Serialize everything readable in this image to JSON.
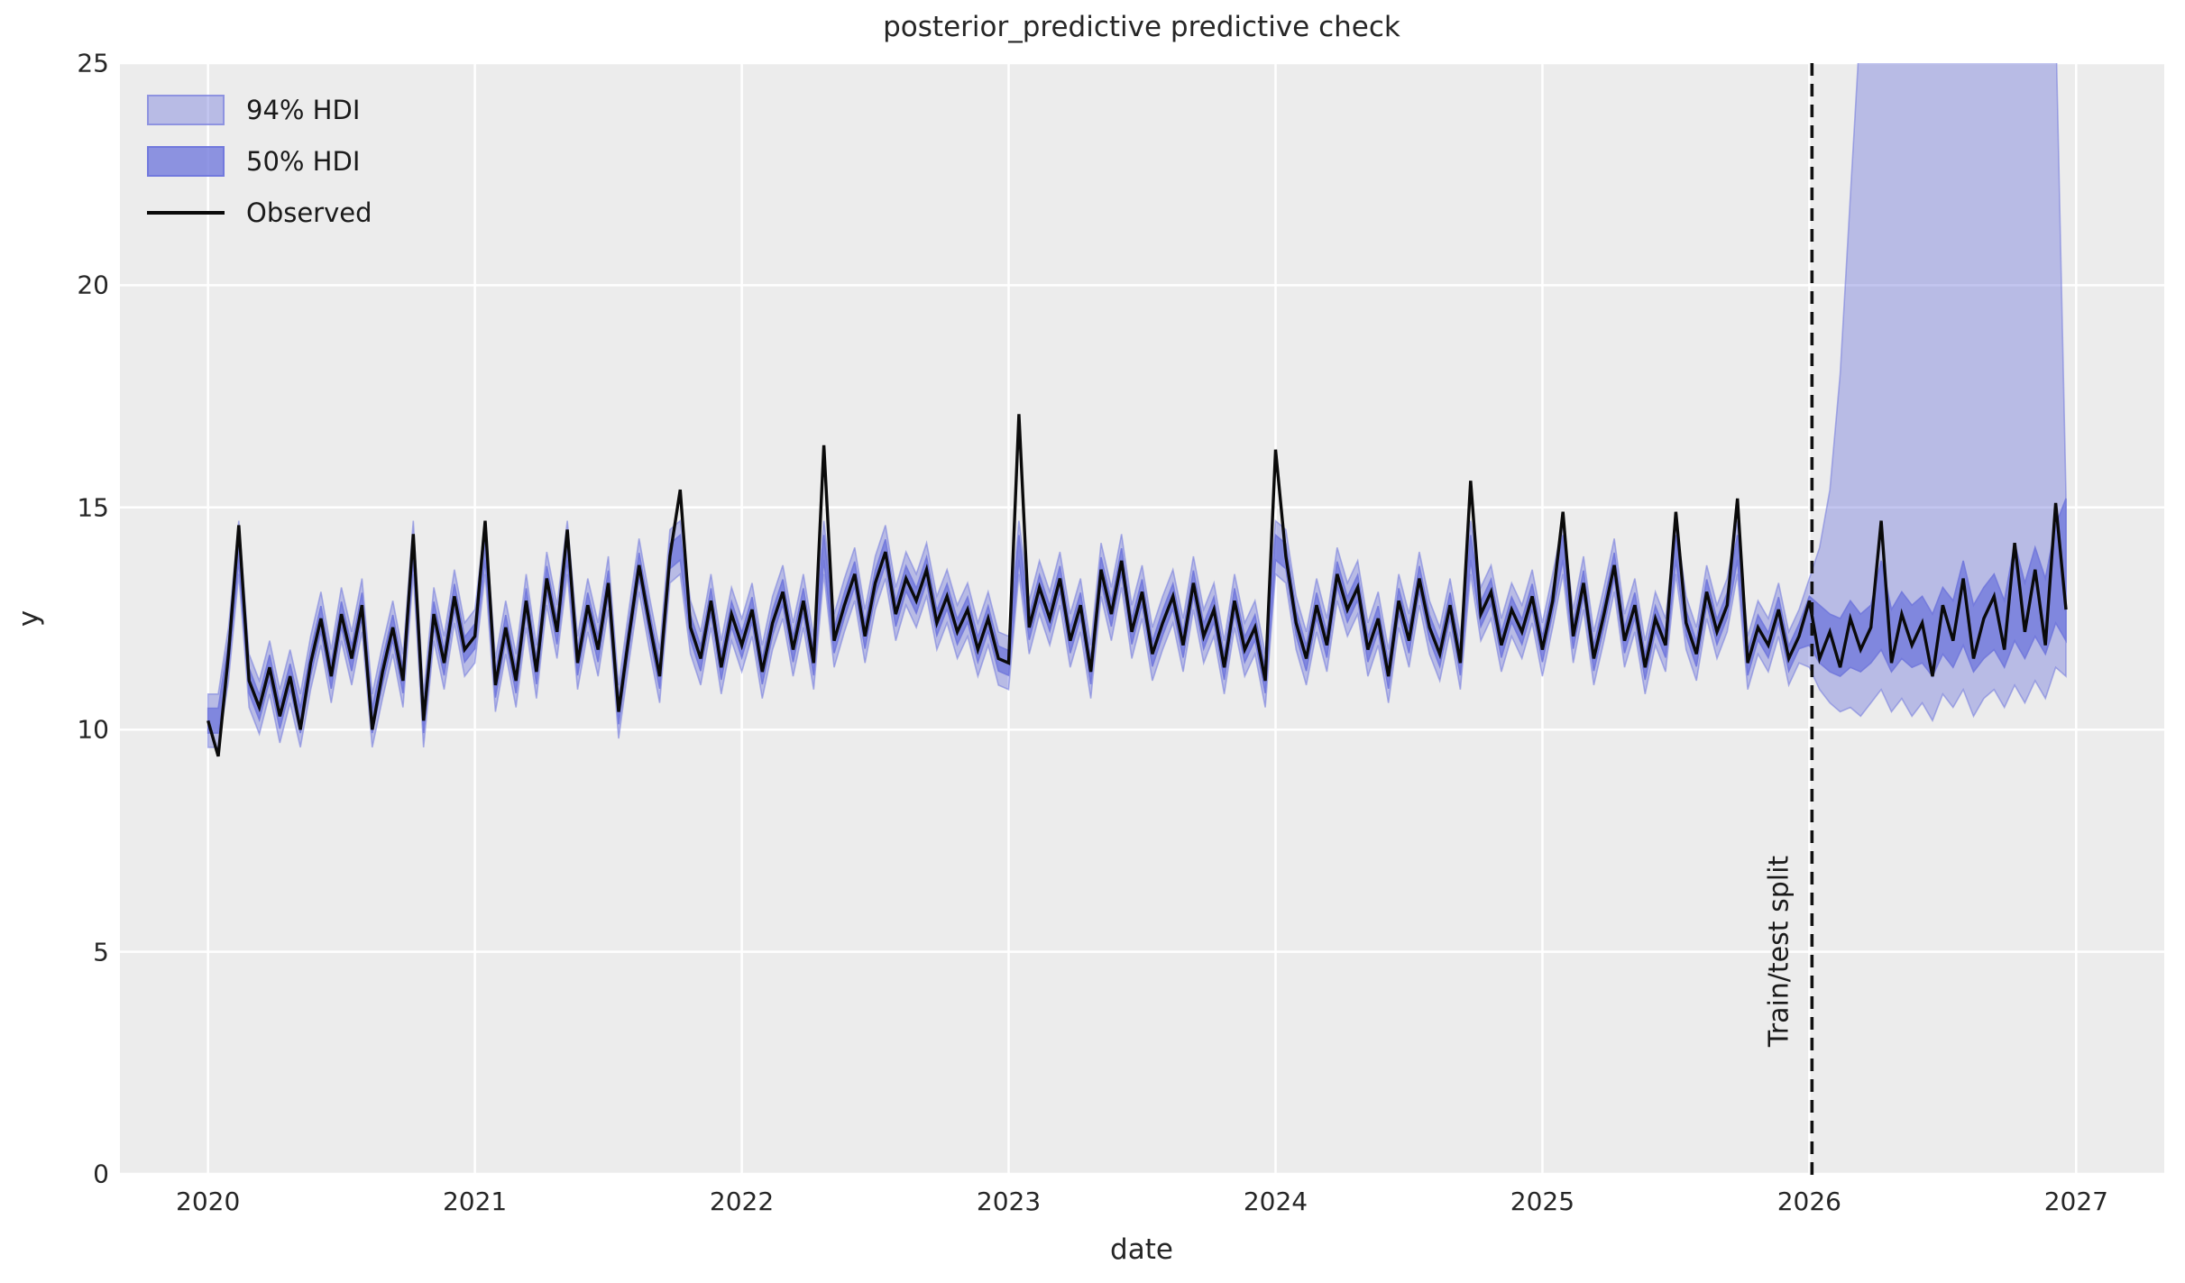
{
  "title": "posterior_predictive predictive check",
  "axes": {
    "xlabel": "date",
    "ylabel": "y",
    "x_tick_labels": [
      "2020",
      "2021",
      "2022",
      "2023",
      "2024",
      "2025",
      "2026",
      "2027"
    ],
    "y_tick_labels": [
      "0",
      "5",
      "10",
      "15",
      "20",
      "25"
    ]
  },
  "legend": {
    "items": [
      {
        "label": "94% HDI",
        "swatch": "band-light"
      },
      {
        "label": "50% HDI",
        "swatch": "band-dark"
      },
      {
        "label": "Observed",
        "swatch": "line"
      }
    ]
  },
  "annotation": {
    "text": "Train/test split",
    "x": 2026.01
  },
  "colors": {
    "figure_bg": "#ffffff",
    "axes_bg": "#ececec",
    "grid": "#ffffff",
    "hdi_fill": "#7178dc",
    "hdi94_alpha": 0.42,
    "hdi50_alpha": 0.78,
    "observed_line": "#0a0a0a",
    "split_line": "#111111",
    "text": "#262626"
  },
  "chart_data": {
    "type": "line",
    "title": "posterior_predictive predictive check",
    "xlabel": "date",
    "ylabel": "y",
    "xlim": [
      2019.67,
      2027.33
    ],
    "ylim": [
      0,
      25
    ],
    "x_ticks": [
      2020,
      2021,
      2022,
      2023,
      2024,
      2025,
      2026,
      2027
    ],
    "y_ticks": [
      0,
      5,
      10,
      15,
      20,
      25
    ],
    "grid": true,
    "legend_position": "upper left",
    "x_start": 2020.0,
    "x_step": 0.038462,
    "split_x": 2026.01,
    "observed": [
      10.2,
      9.4,
      11.7,
      14.6,
      11.1,
      10.5,
      11.4,
      10.3,
      11.2,
      10.0,
      11.5,
      12.5,
      11.2,
      12.6,
      11.6,
      12.8,
      10.0,
      11.3,
      12.3,
      11.1,
      14.4,
      10.2,
      12.6,
      11.5,
      13.0,
      11.8,
      12.1,
      14.7,
      11.0,
      12.3,
      11.1,
      12.9,
      11.3,
      13.4,
      12.2,
      14.5,
      11.5,
      12.8,
      11.8,
      13.3,
      10.4,
      12.1,
      13.7,
      12.4,
      11.2,
      13.9,
      15.4,
      12.3,
      11.6,
      12.9,
      11.4,
      12.6,
      11.9,
      12.7,
      11.3,
      12.4,
      13.1,
      11.8,
      12.9,
      11.5,
      16.4,
      12.0,
      12.8,
      13.5,
      12.1,
      13.3,
      14.0,
      12.6,
      13.4,
      12.9,
      13.6,
      12.4,
      13.0,
      12.2,
      12.7,
      11.8,
      12.5,
      11.6,
      11.5,
      17.1,
      12.3,
      13.2,
      12.5,
      13.4,
      12.0,
      12.8,
      11.3,
      13.6,
      12.6,
      13.8,
      12.2,
      13.1,
      11.7,
      12.4,
      13.0,
      11.9,
      13.3,
      12.1,
      12.7,
      11.4,
      12.9,
      11.8,
      12.3,
      11.1,
      16.3,
      13.9,
      12.4,
      11.6,
      12.8,
      11.9,
      13.5,
      12.7,
      13.2,
      11.8,
      12.5,
      11.2,
      12.9,
      12.0,
      13.4,
      12.3,
      11.7,
      12.8,
      11.5,
      15.6,
      12.6,
      13.1,
      11.9,
      12.7,
      12.2,
      13.0,
      11.8,
      12.9,
      14.9,
      12.1,
      13.3,
      11.6,
      12.6,
      13.7,
      12.0,
      12.8,
      11.4,
      12.5,
      11.9,
      14.9,
      12.4,
      11.7,
      13.1,
      12.2,
      12.8,
      15.2,
      11.5,
      12.3,
      11.9,
      12.7,
      11.6,
      12.1,
      12.9,
      11.6,
      12.2,
      11.4,
      12.5,
      11.8,
      12.3,
      14.7,
      11.5,
      12.6,
      11.9,
      12.4,
      11.2,
      12.8,
      12.0,
      13.4,
      11.6,
      12.5,
      13.0,
      11.8,
      14.2,
      12.2,
      13.6,
      11.9,
      15.1,
      12.7
    ],
    "in_sample_band_rule": {
      "center_clamp_min": 10.2,
      "center_clamp_max": 14.1,
      "hdi94_half_width": 0.6,
      "hdi50_half_width": 0.28
    },
    "forecast": {
      "start_index": 156,
      "hdi94_hi": [
        13.4,
        14.1,
        15.4,
        18.0,
        22.0,
        26.0,
        27.0,
        27.0,
        27.0,
        27.0,
        27.0,
        27.0,
        27.0,
        27.0,
        27.0,
        27.0,
        27.0,
        27.0,
        27.0,
        27.0,
        27.0,
        27.0,
        27.0,
        27.0,
        26.0,
        15.3
      ],
      "hdi94_lo": [
        11.4,
        10.9,
        10.6,
        10.4,
        10.5,
        10.3,
        10.6,
        10.9,
        10.4,
        10.7,
        10.3,
        10.6,
        10.2,
        10.8,
        10.5,
        10.9,
        10.3,
        10.7,
        10.9,
        10.5,
        11.0,
        10.6,
        11.1,
        10.7,
        11.4,
        11.2
      ],
      "hdi50_hi": [
        13.0,
        12.8,
        12.6,
        12.5,
        12.9,
        12.6,
        12.8,
        13.8,
        12.7,
        13.1,
        12.8,
        13.0,
        12.6,
        13.2,
        12.9,
        13.8,
        12.8,
        13.2,
        13.5,
        12.9,
        14.2,
        13.3,
        14.1,
        13.4,
        14.6,
        15.2
      ],
      "hdi50_lo": [
        11.9,
        11.5,
        11.3,
        11.2,
        11.4,
        11.3,
        11.5,
        11.8,
        11.3,
        11.6,
        11.4,
        11.5,
        11.2,
        11.7,
        11.4,
        11.9,
        11.3,
        11.6,
        11.8,
        11.4,
        12.0,
        11.6,
        12.1,
        11.7,
        12.4,
        12.0
      ]
    },
    "annotation": {
      "text": "Train/test split",
      "x": 2026.01
    }
  }
}
